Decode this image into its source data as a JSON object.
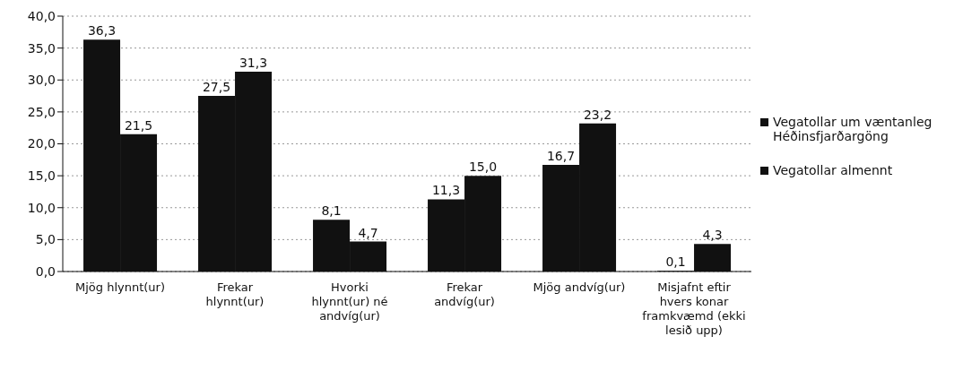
{
  "chart_data": {
    "type": "bar",
    "categories": [
      "Mjög hlynnt(ur)",
      "Frekar hlynnt(ur)",
      "Hvorki hlynnt(ur) né andvíg(ur)",
      "Frekar andvíg(ur)",
      "Mjög andvíg(ur)",
      "Misjafnt eftir hvers konar framkvæmd (ekki lesið upp)"
    ],
    "series": [
      {
        "name": "Vegatollar um væntanleg Héðinsfjarðargöng",
        "color": "#111111",
        "values": [
          36.3,
          27.5,
          8.1,
          11.3,
          16.7,
          0.1
        ],
        "value_labels": [
          "36,3",
          "27,5",
          "8,1",
          "11,3",
          "16,7",
          "0,1"
        ]
      },
      {
        "name": "Vegatollar almennt",
        "color": "#111111",
        "values": [
          21.5,
          31.3,
          4.7,
          15.0,
          23.2,
          4.3
        ],
        "value_labels": [
          "21,5",
          "31,3",
          "4,7",
          "15,0",
          "23,2",
          "4,3"
        ]
      }
    ],
    "ylim": [
      0,
      40
    ],
    "yticks": [
      {
        "value": 0,
        "label": "0,0"
      },
      {
        "value": 5,
        "label": "5,0"
      },
      {
        "value": 10,
        "label": "10,0"
      },
      {
        "value": 15,
        "label": "15,0"
      },
      {
        "value": 20,
        "label": "20,0"
      },
      {
        "value": 25,
        "label": "25,0"
      },
      {
        "value": 30,
        "label": "30,0"
      },
      {
        "value": 35,
        "label": "35,0"
      },
      {
        "value": 40,
        "label": "40,0"
      }
    ],
    "grid": "y",
    "legend": "right"
  }
}
